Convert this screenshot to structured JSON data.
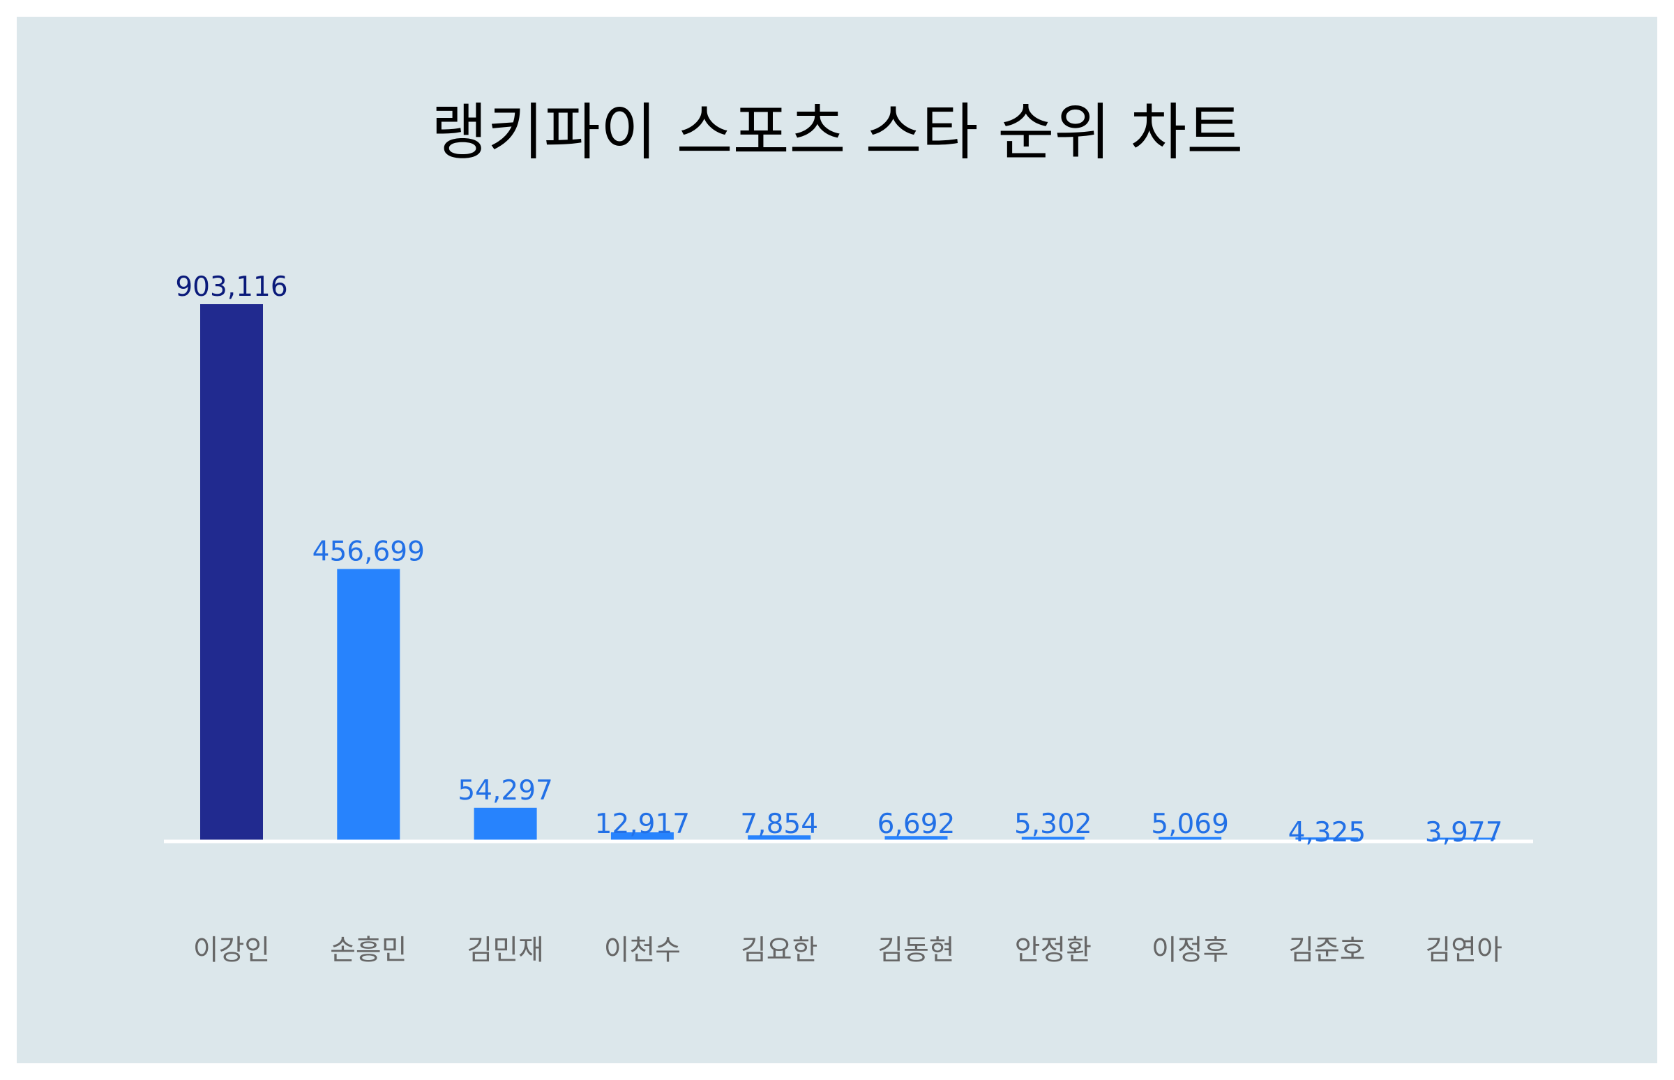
{
  "chart_data": {
    "type": "bar",
    "title": "랭키파이 스포츠 스타 순위 차트",
    "xlabel": "",
    "ylabel": "",
    "categories": [
      "이강인",
      "손흥민",
      "김민재",
      "이천수",
      "김요한",
      "김동현",
      "안정환",
      "이정후",
      "김준호",
      "김연아"
    ],
    "values": [
      903116,
      456699,
      54297,
      12917,
      7854,
      6692,
      5302,
      5069,
      4325,
      3977
    ],
    "value_labels": [
      "903,116",
      "456,699",
      "54,297",
      "12,917",
      "7,854",
      "6,692",
      "5,302",
      "5,069",
      "4,325",
      "3,977"
    ],
    "ylim": [
      0,
      903116
    ],
    "grid": false,
    "legend": "none",
    "colors": {
      "top_bar": "#212a8f",
      "bar": "#2783fd",
      "top_label": "#0a1a7a",
      "label": "#2270e6",
      "baseline": "#ffffff",
      "background": "#dce7eb"
    }
  }
}
